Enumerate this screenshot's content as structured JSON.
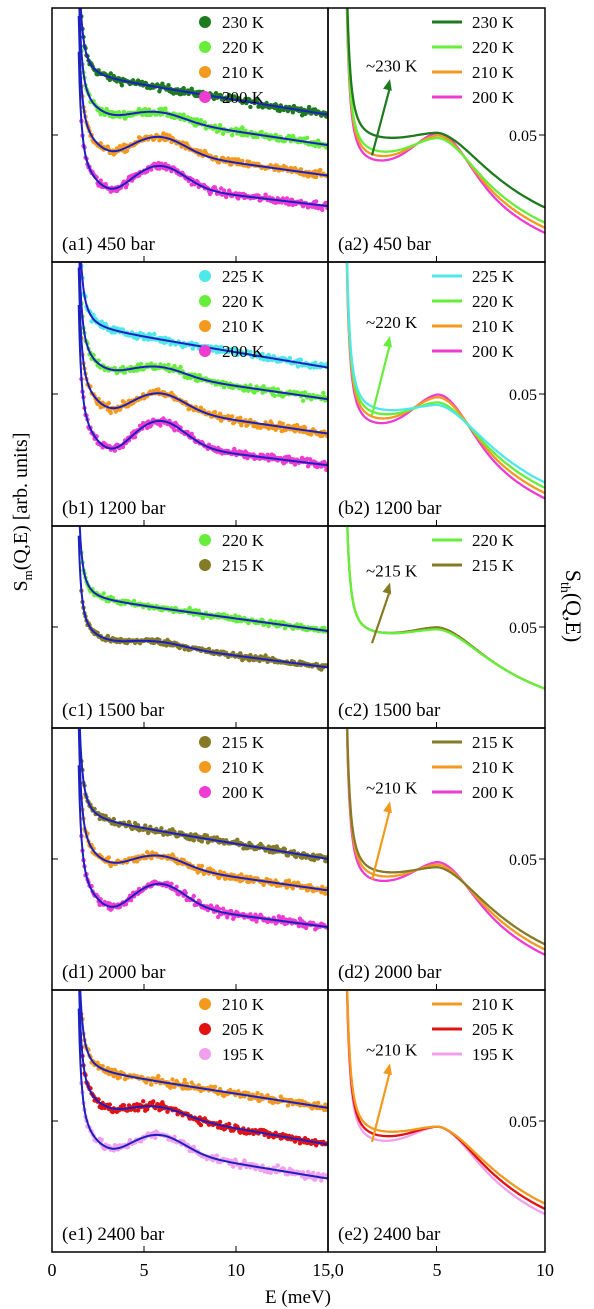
{
  "figure": {
    "ylabel_left_main": "S",
    "ylabel_left_sub": "m",
    "ylabel_left_rest": "(Q,E) [arb. units]",
    "ylabel_right_main": "S",
    "ylabel_right_sub": "th",
    "ylabel_right_rest": "(Q,E)",
    "xlabel": "E (meV)",
    "x_ticks_left": [
      "0",
      "5",
      "10",
      "15,0"
    ],
    "x_ticks_right": [
      "5",
      "10"
    ],
    "colors": {
      "fit_line": "#1c20c0",
      "230 K": "#1e7a1e",
      "225 K": "#4fe8e8",
      "220 K": "#66ee3a",
      "215 K": "#857a26",
      "210 K": "#f39a1e",
      "205 K": "#e01212",
      "200 K": "#ee3bd2",
      "195 K": "#f2a0ee",
      "arrow_a": "#1e7a1e",
      "arrow_b": "#66ee3a",
      "arrow_c": "#857a26",
      "arrow_d": "#f39a1e",
      "arrow_e": "#f39a1e"
    }
  },
  "chart_data": [
    {
      "type": "scatter",
      "panel": "a1",
      "label": "(a1) 450 bar",
      "xlim": [
        0,
        15
      ],
      "series": [
        {
          "name": "230 K",
          "plateau": 0.73,
          "hump": 0.0,
          "end": 0.58
        },
        {
          "name": "220 K",
          "plateau": 0.6,
          "hump": 0.03,
          "end": 0.46
        },
        {
          "name": "210 K",
          "plateau": 0.47,
          "hump": 0.06,
          "end": 0.34
        },
        {
          "name": "200 K",
          "plateau": 0.33,
          "hump": 0.08,
          "end": 0.22
        }
      ]
    },
    {
      "type": "line",
      "panel": "a2",
      "label": "(a2) 450 bar",
      "annotation": "~230 K",
      "ytick_label": "0.05",
      "xlim": [
        0,
        10
      ],
      "series": [
        {
          "name": "230 K",
          "floor": 0.47,
          "hump": 0.0
        },
        {
          "name": "220 K",
          "floor": 0.41,
          "hump": 0.04
        },
        {
          "name": "210 K",
          "floor": 0.39,
          "hump": 0.07
        },
        {
          "name": "200 K",
          "floor": 0.37,
          "hump": 0.1
        }
      ]
    },
    {
      "type": "scatter",
      "panel": "b1",
      "label": "(b1) 1200 bar",
      "xlim": [
        0,
        15
      ],
      "series": [
        {
          "name": "225 K",
          "plateau": 0.75,
          "hump": 0.0,
          "end": 0.6
        },
        {
          "name": "220 K",
          "plateau": 0.61,
          "hump": 0.03,
          "end": 0.48
        },
        {
          "name": "210 K",
          "plateau": 0.48,
          "hump": 0.06,
          "end": 0.35
        },
        {
          "name": "200 K",
          "plateau": 0.34,
          "hump": 0.09,
          "end": 0.23
        }
      ]
    },
    {
      "type": "line",
      "panel": "b2",
      "label": "(b2) 1200 bar",
      "annotation": "~220 K",
      "ytick_label": "0.05",
      "xlim": [
        0,
        10
      ],
      "series": [
        {
          "name": "225 K",
          "floor": 0.42,
          "hump": 0.0
        },
        {
          "name": "220 K",
          "floor": 0.4,
          "hump": 0.03
        },
        {
          "name": "210 K",
          "floor": 0.38,
          "hump": 0.07
        },
        {
          "name": "200 K",
          "floor": 0.36,
          "hump": 0.1
        }
      ]
    },
    {
      "type": "scatter",
      "panel": "c1",
      "label": "(c1) 1500 bar",
      "xlim": [
        0,
        15
      ],
      "series": [
        {
          "name": "220 K",
          "plateau": 0.64,
          "hump": 0.0,
          "end": 0.48
        },
        {
          "name": "215 K",
          "plateau": 0.45,
          "hump": 0.02,
          "end": 0.3
        }
      ]
    },
    {
      "type": "line",
      "panel": "c2",
      "label": "(c2) 1500 bar",
      "annotation": "~215 K",
      "ytick_label": "0.05",
      "xlim": [
        0,
        10
      ],
      "series": [
        {
          "name": "220 K",
          "floor": 0.45,
          "hump": 0.0
        },
        {
          "name": "215 K",
          "floor": 0.45,
          "hump": 0.01
        }
      ]
    },
    {
      "type": "scatter",
      "panel": "d1",
      "label": "(d1) 2000 bar",
      "xlim": [
        0,
        15
      ],
      "series": [
        {
          "name": "215 K",
          "plateau": 0.65,
          "hump": 0.0,
          "end": 0.5
        },
        {
          "name": "210 K",
          "plateau": 0.51,
          "hump": 0.04,
          "end": 0.38
        },
        {
          "name": "200 K",
          "plateau": 0.36,
          "hump": 0.08,
          "end": 0.24
        }
      ]
    },
    {
      "type": "line",
      "panel": "d2",
      "label": "(d2) 2000 bar",
      "annotation": "~210 K",
      "ytick_label": "0.05",
      "xlim": [
        0,
        10
      ],
      "series": [
        {
          "name": "215 K",
          "floor": 0.43,
          "hump": 0.0
        },
        {
          "name": "210 K",
          "floor": 0.41,
          "hump": 0.03
        },
        {
          "name": "200 K",
          "floor": 0.39,
          "hump": 0.06
        }
      ]
    },
    {
      "type": "scatter",
      "panel": "e1",
      "label": "(e1) 2400 bar",
      "xlim": [
        0,
        15
      ],
      "series": [
        {
          "name": "210 K",
          "plateau": 0.69,
          "hump": 0.0,
          "end": 0.55
        },
        {
          "name": "205 K",
          "plateau": 0.57,
          "hump": 0.03,
          "end": 0.41
        },
        {
          "name": "195 K",
          "plateau": 0.43,
          "hump": 0.06,
          "end": 0.28
        }
      ]
    },
    {
      "type": "line",
      "panel": "e2",
      "label": "(e2) 2400 bar",
      "annotation": "~210 K",
      "ytick_label": "0.05",
      "xlim": [
        0,
        10
      ],
      "series": [
        {
          "name": "210 K",
          "floor": 0.44,
          "hump": 0.0
        },
        {
          "name": "205 K",
          "floor": 0.42,
          "hump": 0.02
        },
        {
          "name": "195 K",
          "floor": 0.4,
          "hump": 0.04
        }
      ]
    }
  ]
}
